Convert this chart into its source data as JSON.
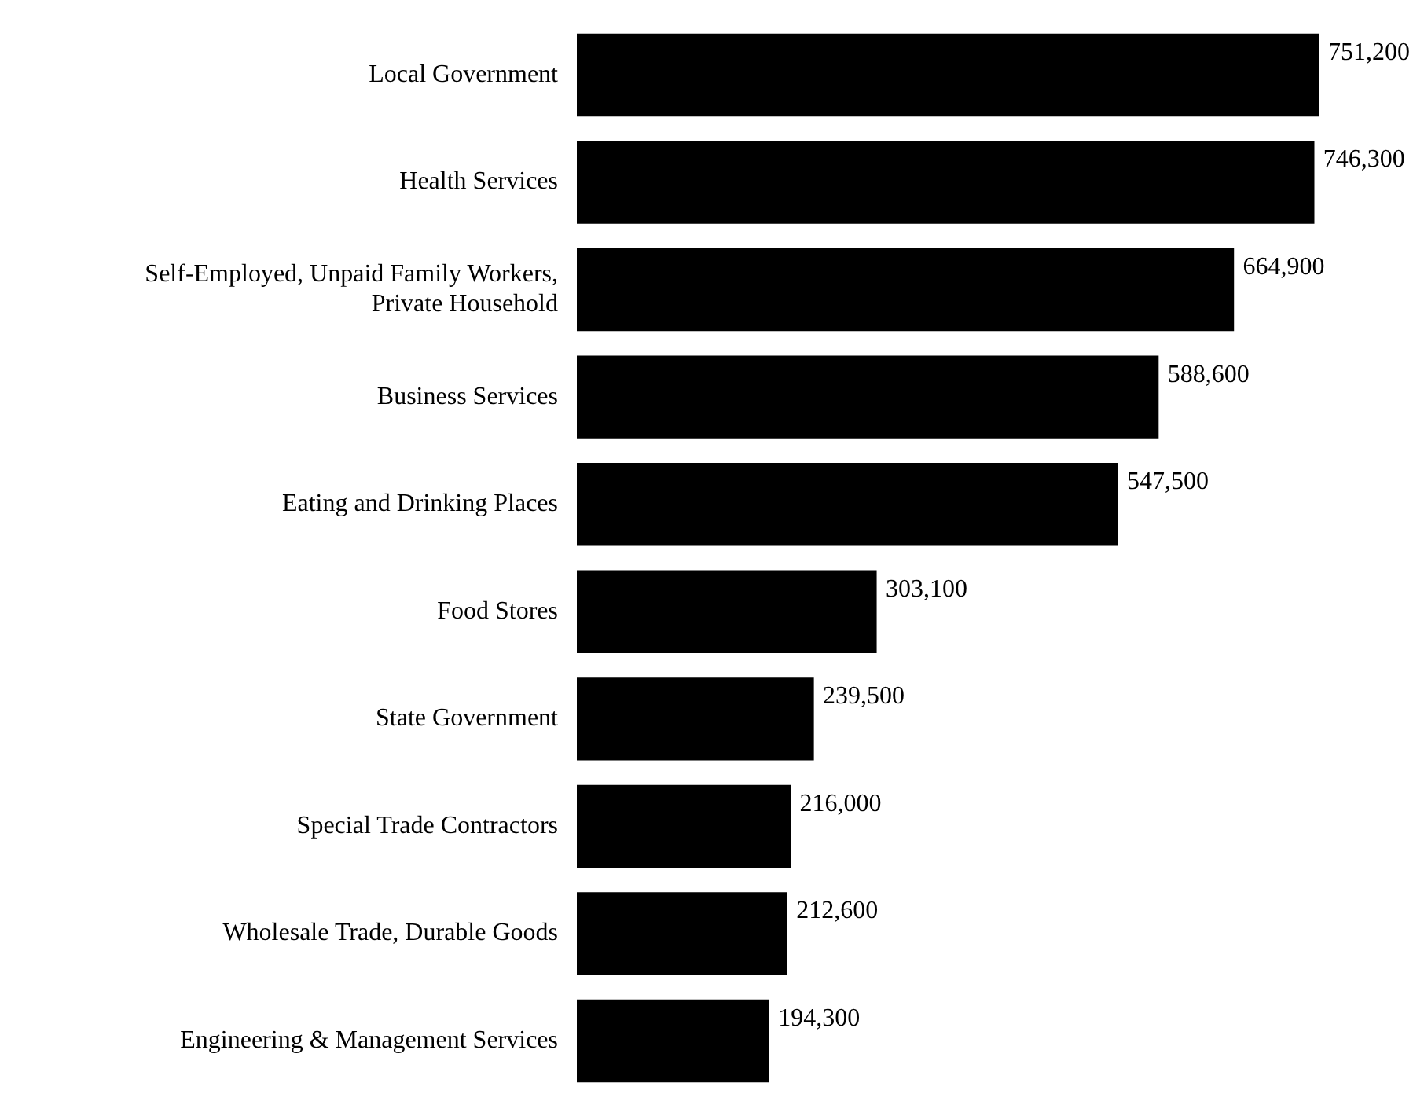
{
  "chart_data": {
    "type": "bar",
    "orientation": "horizontal",
    "categories": [
      "Local Government",
      "Health Services",
      "Self-Employed, Unpaid Family Workers,\nPrivate Household",
      "Business Services",
      "Eating and Drinking Places",
      "Food Stores",
      "State Government",
      "Special Trade Contractors",
      "Wholesale Trade, Durable Goods",
      "Engineering & Management Services"
    ],
    "values": [
      751200,
      746300,
      664900,
      588600,
      547500,
      303100,
      239500,
      216000,
      212600,
      194300
    ],
    "value_labels": [
      "751,200",
      "746,300",
      "664,900",
      "588,600",
      "547,500",
      "303,100",
      "239,500",
      "216,000",
      "212,600",
      "194,300"
    ],
    "color": "#000000"
  }
}
